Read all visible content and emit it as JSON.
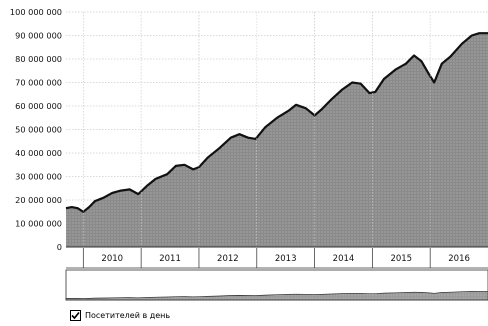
{
  "chart_data": {
    "type": "area",
    "title": "",
    "xlabel": "",
    "ylabel": "",
    "ylim": [
      0,
      100000000
    ],
    "y_ticks": [
      {
        "value": 0,
        "label": "0"
      },
      {
        "value": 10000000,
        "label": "10 000 000"
      },
      {
        "value": 20000000,
        "label": "20 000 000"
      },
      {
        "value": 30000000,
        "label": "30 000 000"
      },
      {
        "value": 40000000,
        "label": "40 000 000"
      },
      {
        "value": 50000000,
        "label": "50 000 000"
      },
      {
        "value": 60000000,
        "label": "60 000 000"
      },
      {
        "value": 70000000,
        "label": "70 000 000"
      },
      {
        "value": 80000000,
        "label": "80 000 000"
      },
      {
        "value": 90000000,
        "label": "90 000 000"
      },
      {
        "value": 100000000,
        "label": "100 000 000"
      }
    ],
    "xlim": [
      2009.7,
      2017.0
    ],
    "year_labels": [
      "2010",
      "2011",
      "2012",
      "2013",
      "2014",
      "2015",
      "2016"
    ],
    "grid": true,
    "colors": {
      "area": "#8a8a8a",
      "stroke": "#111111",
      "navigator_area": "#9a9a9a"
    },
    "series": [
      {
        "name": "Посетителей в день",
        "points": [
          [
            2009.7,
            16.5
          ],
          [
            2009.8,
            17.0
          ],
          [
            2009.9,
            16.5
          ],
          [
            2010.0,
            15.0
          ],
          [
            2010.1,
            17.0
          ],
          [
            2010.2,
            19.5
          ],
          [
            2010.35,
            21.0
          ],
          [
            2010.5,
            23.0
          ],
          [
            2010.65,
            24.0
          ],
          [
            2010.8,
            24.5
          ],
          [
            2010.95,
            22.5
          ],
          [
            2011.1,
            26.0
          ],
          [
            2011.25,
            29.0
          ],
          [
            2011.45,
            31.0
          ],
          [
            2011.6,
            34.5
          ],
          [
            2011.75,
            35.0
          ],
          [
            2011.9,
            33.0
          ],
          [
            2012.0,
            34.0
          ],
          [
            2012.15,
            38.0
          ],
          [
            2012.35,
            42.0
          ],
          [
            2012.55,
            46.5
          ],
          [
            2012.7,
            48.0
          ],
          [
            2012.85,
            46.5
          ],
          [
            2012.98,
            46.0
          ],
          [
            2013.15,
            51.0
          ],
          [
            2013.35,
            55.0
          ],
          [
            2013.55,
            58.0
          ],
          [
            2013.68,
            60.5
          ],
          [
            2013.85,
            59.0
          ],
          [
            2014.0,
            56.0
          ],
          [
            2014.12,
            58.5
          ],
          [
            2014.3,
            63.0
          ],
          [
            2014.48,
            67.0
          ],
          [
            2014.65,
            70.0
          ],
          [
            2014.8,
            69.5
          ],
          [
            2014.95,
            65.5
          ],
          [
            2015.05,
            66.0
          ],
          [
            2015.2,
            71.5
          ],
          [
            2015.4,
            75.5
          ],
          [
            2015.58,
            78.0
          ],
          [
            2015.72,
            81.5
          ],
          [
            2015.85,
            79.0
          ],
          [
            2015.98,
            73.5
          ],
          [
            2016.07,
            70.0
          ],
          [
            2016.2,
            78.0
          ],
          [
            2016.35,
            81.0
          ],
          [
            2016.55,
            86.5
          ],
          [
            2016.72,
            90.0
          ],
          [
            2016.85,
            91.0
          ],
          [
            2017.0,
            91.0
          ]
        ]
      }
    ]
  },
  "legend": {
    "checked": true,
    "label": "Посетителей в день"
  }
}
